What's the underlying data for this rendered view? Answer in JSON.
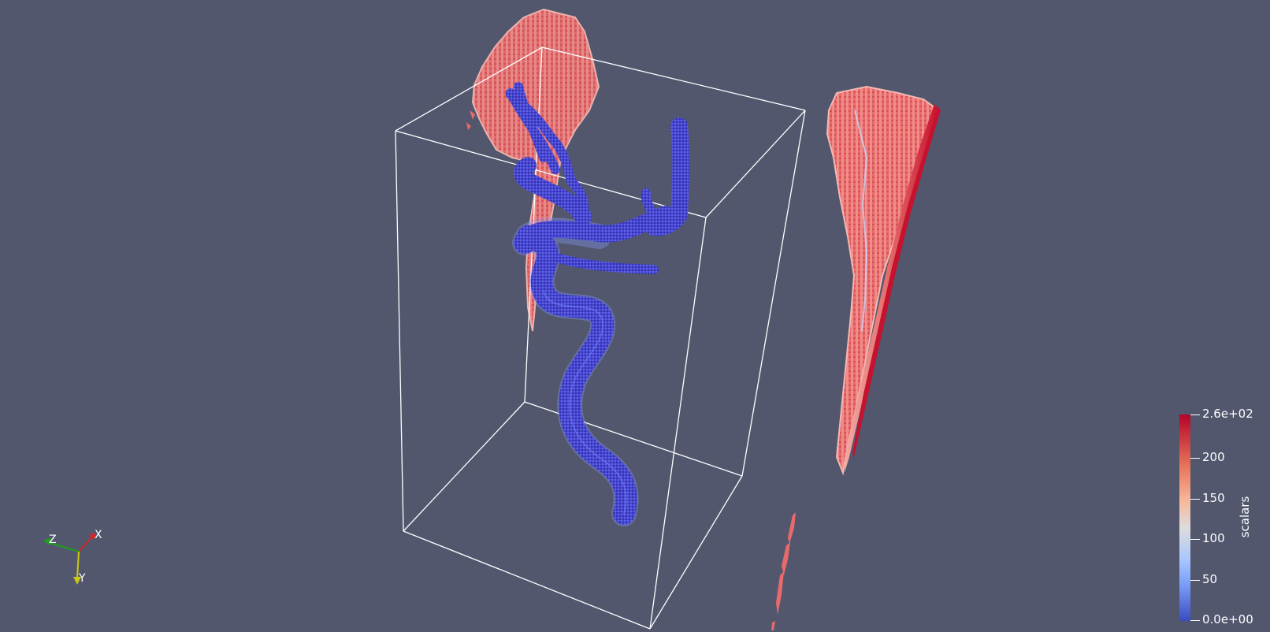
{
  "orientation_axes": {
    "x_label": "X",
    "y_label": "Y",
    "z_label": "Z",
    "x_color": "#d62728",
    "y_color": "#c8c814",
    "z_color": "#1f9e1f"
  },
  "colorbar": {
    "title": "scalars",
    "ticks": [
      "2.6e+02",
      "200",
      "150",
      "100",
      "50",
      "0.0e+00"
    ],
    "colormap": "cool-to-warm",
    "color_low": "#3b4cc0",
    "color_mid": "#dddcdc",
    "color_high": "#b40426"
  },
  "scene": {
    "background": "#52576e",
    "bounding_box_color": "#ffffff",
    "vessel_color": "#4a4ad8",
    "slice_color": "#e86a6a"
  }
}
